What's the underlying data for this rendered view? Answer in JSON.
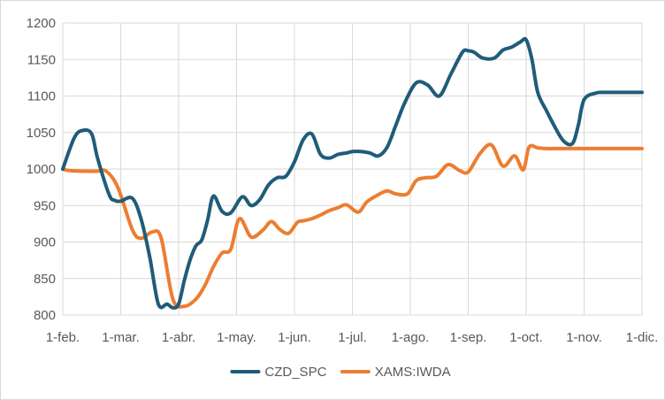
{
  "chart_data": {
    "type": "line",
    "title": "",
    "xlabel": "",
    "ylabel": "",
    "ylim": [
      800,
      1200
    ],
    "yticks": [
      800,
      850,
      900,
      950,
      1000,
      1050,
      1100,
      1150,
      1200
    ],
    "xlim": [
      0,
      10
    ],
    "xtick_labels": [
      "1-feb.",
      "1-mar.",
      "1-abr.",
      "1-may.",
      "1-jun.",
      "1-jul.",
      "1-ago.",
      "1-sep.",
      "1-oct.",
      "1-nov.",
      "1-dic."
    ],
    "grid": true,
    "legend_position": "bottom",
    "series": [
      {
        "name": "CZD_SPC",
        "color": "#1f5c7a",
        "x": [
          0,
          0.2,
          0.35,
          0.5,
          0.6,
          0.8,
          0.9,
          1.0,
          1.2,
          1.35,
          1.5,
          1.65,
          1.8,
          1.9,
          2.0,
          2.1,
          2.2,
          2.3,
          2.4,
          2.5,
          2.6,
          2.75,
          2.9,
          3.1,
          3.25,
          3.4,
          3.55,
          3.7,
          3.85,
          4.0,
          4.15,
          4.3,
          4.45,
          4.6,
          4.75,
          4.9,
          5.0,
          5.15,
          5.3,
          5.45,
          5.6,
          5.75,
          5.9,
          6.1,
          6.3,
          6.5,
          6.7,
          6.9,
          7.0,
          7.1,
          7.25,
          7.45,
          7.6,
          7.75,
          7.9,
          8.0,
          8.1,
          8.2,
          8.35,
          8.5,
          8.65,
          8.8,
          8.9,
          9.0,
          9.2,
          9.35,
          9.55,
          9.7,
          9.85,
          10.0
        ],
        "y": [
          1000,
          1043,
          1053,
          1048,
          1015,
          965,
          957,
          956,
          960,
          932,
          880,
          815,
          815,
          810,
          815,
          848,
          876,
          895,
          903,
          930,
          963,
          942,
          940,
          962,
          950,
          958,
          978,
          988,
          990,
          1010,
          1040,
          1048,
          1020,
          1015,
          1020,
          1022,
          1024,
          1024,
          1022,
          1018,
          1030,
          1060,
          1090,
          1118,
          1115,
          1100,
          1130,
          1160,
          1162,
          1160,
          1152,
          1152,
          1163,
          1167,
          1174,
          1177,
          1150,
          1105,
          1080,
          1057,
          1038,
          1035,
          1060,
          1095,
          1104,
          1105,
          1105,
          1105,
          1105,
          1105
        ]
      },
      {
        "name": "XAMS:IWDA",
        "color": "#ed7d31",
        "x": [
          0,
          0.1,
          0.35,
          0.6,
          0.75,
          0.95,
          1.2,
          1.35,
          1.55,
          1.7,
          1.9,
          2.1,
          2.3,
          2.45,
          2.6,
          2.75,
          2.9,
          3.05,
          3.25,
          3.45,
          3.6,
          3.75,
          3.9,
          4.05,
          4.15,
          4.3,
          4.45,
          4.6,
          4.75,
          4.9,
          5.1,
          5.25,
          5.45,
          5.6,
          5.75,
          5.95,
          6.1,
          6.25,
          6.45,
          6.65,
          6.85,
          7.0,
          7.2,
          7.4,
          7.6,
          7.8,
          7.95,
          8.05,
          8.2,
          8.35,
          8.5,
          8.65,
          8.8,
          8.95,
          9.1,
          9.25,
          9.45,
          9.6,
          9.8,
          10.0
        ],
        "y": [
          1000,
          998,
          997,
          997,
          997,
          975,
          917,
          905,
          914,
          905,
          822,
          812,
          822,
          840,
          866,
          885,
          890,
          932,
          907,
          916,
          928,
          917,
          912,
          927,
          929,
          932,
          937,
          943,
          947,
          951,
          941,
          955,
          965,
          970,
          966,
          966,
          984,
          988,
          990,
          1006,
          998,
          996,
          1021,
          1033,
          1004,
          1018,
          999,
          1030,
          1029,
          1028,
          1028,
          1028,
          1028,
          1028,
          1028,
          1028,
          1028,
          1028,
          1028,
          1028
        ]
      }
    ]
  }
}
